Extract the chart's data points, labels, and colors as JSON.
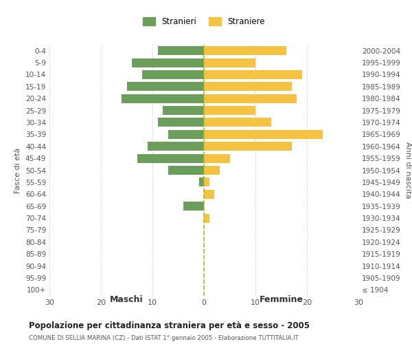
{
  "age_groups": [
    "0-4",
    "5-9",
    "10-14",
    "15-19",
    "20-24",
    "25-29",
    "30-34",
    "35-39",
    "40-44",
    "45-49",
    "50-54",
    "55-59",
    "60-64",
    "65-69",
    "70-74",
    "75-79",
    "80-84",
    "85-89",
    "90-94",
    "95-99",
    "100+"
  ],
  "birth_years": [
    "2000-2004",
    "1995-1999",
    "1990-1994",
    "1985-1989",
    "1980-1984",
    "1975-1979",
    "1970-1974",
    "1965-1969",
    "1960-1964",
    "1955-1959",
    "1950-1954",
    "1945-1949",
    "1940-1944",
    "1935-1939",
    "1930-1934",
    "1925-1929",
    "1920-1924",
    "1915-1919",
    "1910-1914",
    "1905-1909",
    "≤ 1904"
  ],
  "maschi": [
    9,
    14,
    12,
    15,
    16,
    8,
    9,
    7,
    11,
    13,
    7,
    1,
    0,
    4,
    0,
    0,
    0,
    0,
    0,
    0,
    0
  ],
  "femmine": [
    16,
    10,
    19,
    17,
    18,
    10,
    13,
    23,
    17,
    5,
    3,
    1,
    2,
    0,
    1,
    0,
    0,
    0,
    0,
    0,
    0
  ],
  "male_color": "#6a9e5a",
  "female_color": "#f5c242",
  "center_line_color": "#b5b52a",
  "grid_color": "#cccccc",
  "bg_color": "#ffffff",
  "title": "Popolazione per cittadinanza straniera per età e sesso - 2005",
  "subtitle": "COMUNE DI SELLIA MARINA (CZ) - Dati ISTAT 1° gennaio 2005 - Elaborazione TUTTITALIA.IT",
  "xlabel_left": "Maschi",
  "xlabel_right": "Femmine",
  "ylabel_left": "Fasce di età",
  "ylabel_right": "Anni di nascita",
  "legend_male": "Stranieri",
  "legend_female": "Straniere",
  "xlim": 30
}
